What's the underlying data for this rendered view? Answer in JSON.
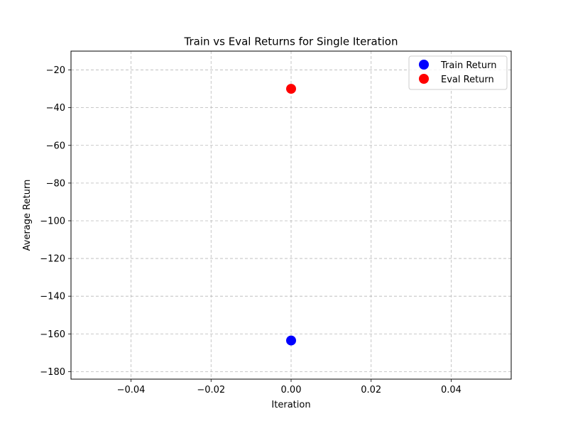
{
  "chart_data": {
    "type": "scatter",
    "title": "Train vs Eval Returns for Single Iteration",
    "xlabel": "Iteration",
    "ylabel": "Average Return",
    "xlim": [
      -0.055,
      0.055
    ],
    "ylim": [
      -184,
      -10
    ],
    "xticks": [
      -0.04,
      -0.02,
      0.0,
      0.02,
      0.04
    ],
    "xtick_labels": [
      "−0.04",
      "−0.02",
      "0.00",
      "0.02",
      "0.04"
    ],
    "yticks": [
      -20,
      -40,
      -60,
      -80,
      -100,
      -120,
      -140,
      -160,
      -180
    ],
    "ytick_labels": [
      "−20",
      "−40",
      "−60",
      "−80",
      "−100",
      "−120",
      "−140",
      "−160",
      "−180"
    ],
    "grid": true,
    "legend_position": "top-right",
    "series": [
      {
        "name": "Train Return",
        "color": "#0000ff",
        "x": [
          0.0
        ],
        "y": [
          -163.5
        ]
      },
      {
        "name": "Eval Return",
        "color": "#ff0000",
        "x": [
          0.0
        ],
        "y": [
          -30.0
        ]
      }
    ]
  }
}
